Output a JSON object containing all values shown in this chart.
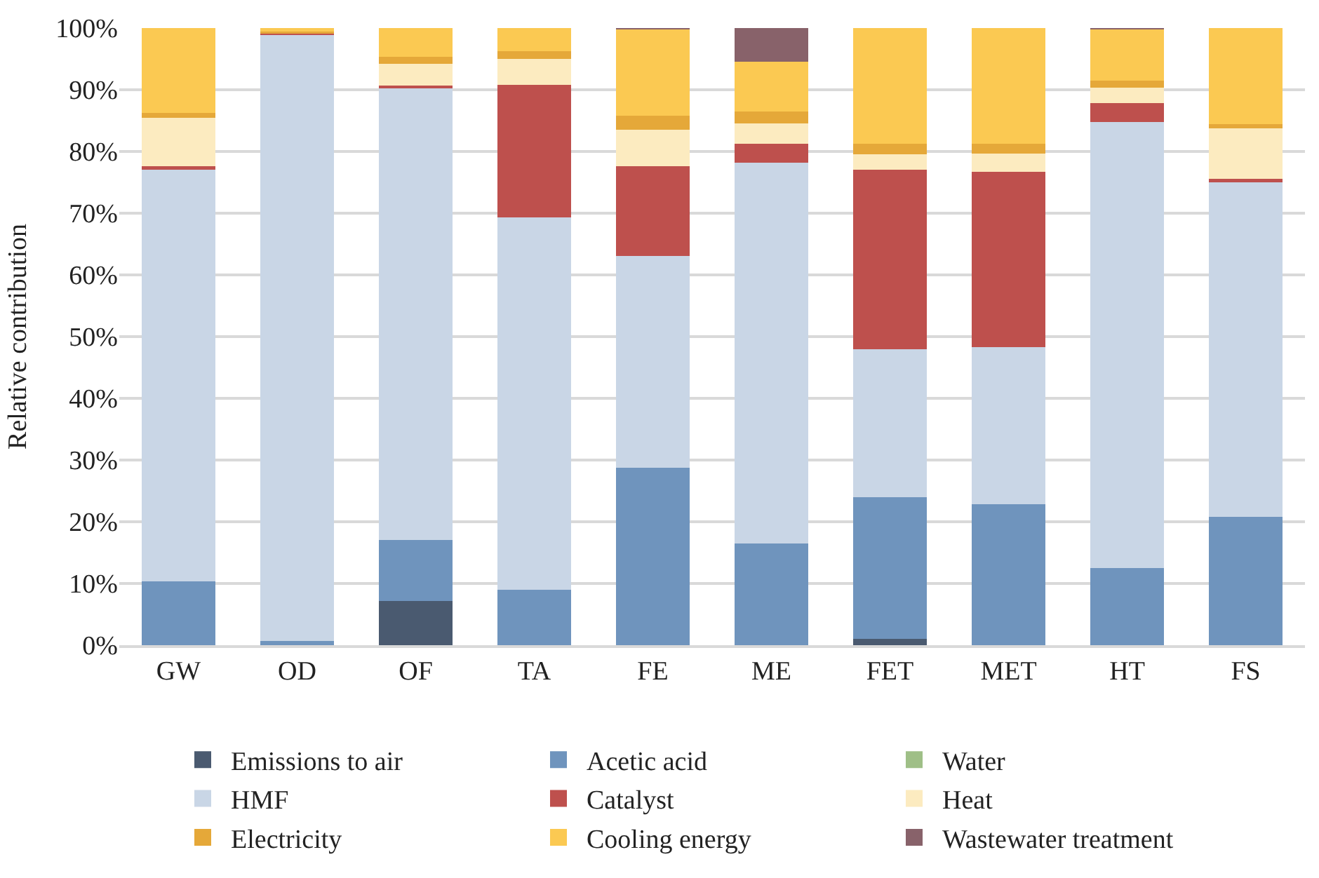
{
  "chart_data": {
    "type": "bar",
    "stacked": true,
    "ylabel": "Relative contribution",
    "categories": [
      "GW",
      "OD",
      "OF",
      "TA",
      "FE",
      "ME",
      "FET",
      "MET",
      "HT",
      "FS"
    ],
    "series": [
      {
        "name": "Emissions to air",
        "color": "#4a5a70",
        "values": [
          null,
          null,
          7.2,
          null,
          null,
          null,
          1.0,
          null,
          null,
          null
        ]
      },
      {
        "name": "Acetic acid",
        "color": "#6f94bd",
        "values": [
          10.3,
          0.7,
          9.8,
          9.0,
          28.8,
          16.5,
          23.0,
          22.8,
          12.5,
          20.8
        ]
      },
      {
        "name": "Water",
        "color": "#9fbf87",
        "values": [
          null,
          null,
          null,
          null,
          null,
          null,
          null,
          null,
          null,
          null
        ]
      },
      {
        "name": "HMF",
        "color": "#c9d6e6",
        "values": [
          66.7,
          98.3,
          73.2,
          60.3,
          34.3,
          61.7,
          23.9,
          25.5,
          72.3,
          54.4
        ]
      },
      {
        "name": "Catalyst",
        "color": "#be504d",
        "values": [
          0.6,
          0.1,
          0.5,
          21.5,
          14.5,
          3.0,
          29.1,
          28.4,
          3.0,
          0.4
        ]
      },
      {
        "name": "Heat",
        "color": "#fcebc0",
        "values": [
          7.9,
          0.2,
          3.5,
          4.2,
          5.9,
          3.4,
          2.5,
          3.0,
          2.5,
          8.1
        ]
      },
      {
        "name": "Electricity",
        "color": "#e5a839",
        "values": [
          0.8,
          0.1,
          1.1,
          1.3,
          2.3,
          1.9,
          1.8,
          1.6,
          1.2,
          0.7
        ]
      },
      {
        "name": "Cooling energy",
        "color": "#fbc952",
        "values": [
          13.7,
          0.6,
          4.7,
          3.7,
          14.0,
          8.1,
          18.7,
          18.7,
          8.3,
          15.6
        ]
      },
      {
        "name": "Wastewater treatment",
        "color": "#88626a",
        "values": [
          null,
          null,
          null,
          null,
          0.2,
          5.4,
          null,
          null,
          0.2,
          null
        ]
      }
    ],
    "ylim": [
      0,
      100
    ],
    "yticks": [
      {
        "value": 0,
        "label": "0%"
      },
      {
        "value": 10,
        "label": "10%"
      },
      {
        "value": 20,
        "label": "20%"
      },
      {
        "value": 30,
        "label": "30%"
      },
      {
        "value": 40,
        "label": "40%"
      },
      {
        "value": 50,
        "label": "50%"
      },
      {
        "value": 60,
        "label": "60%"
      },
      {
        "value": 70,
        "label": "70%"
      },
      {
        "value": 80,
        "label": "80%"
      },
      {
        "value": 90,
        "label": "90%"
      },
      {
        "value": 100,
        "label": "100%"
      }
    ],
    "grid": "y",
    "legend": "bottom"
  }
}
